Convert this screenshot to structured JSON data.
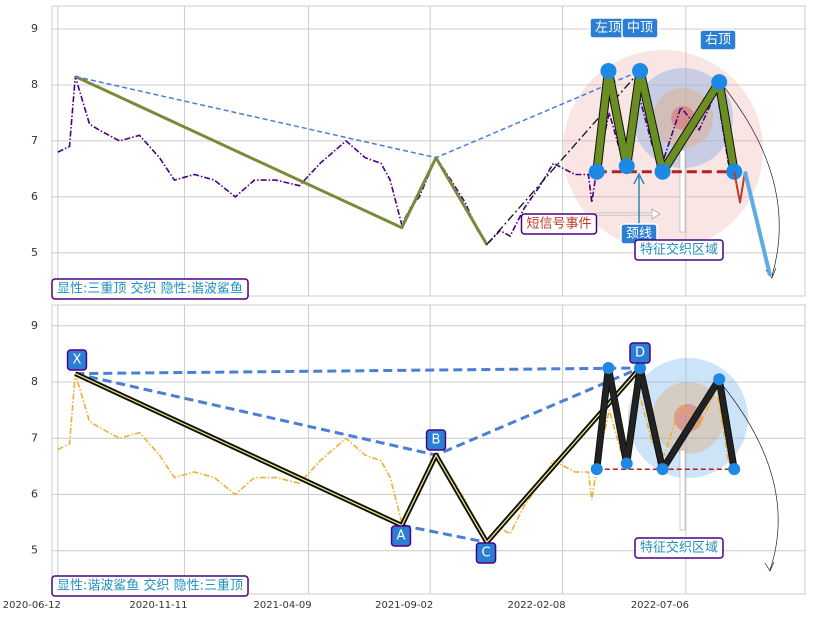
{
  "chart_data": [
    {
      "type": "line",
      "color": "#4b0082",
      "line_style": "dashdot",
      "x": [
        "2020-06-12",
        "2020-06-26",
        "2020-07-03",
        "2020-07-20",
        "2020-07-31",
        "2020-08-25",
        "2020-09-18",
        "2020-10-12",
        "2020-10-30",
        "2020-11-23",
        "2020-12-17",
        "2021-01-11",
        "2021-02-03",
        "2021-03-01",
        "2021-03-29",
        "2021-04-23",
        "2021-05-24",
        "2021-06-16",
        "2021-07-05",
        "2021-07-16",
        "2021-07-30",
        "2021-08-09",
        "2021-08-20",
        "2021-09-09",
        "2021-09-27",
        "2021-10-14",
        "2021-10-29",
        "2021-11-09",
        "2021-11-25",
        "2021-12-07",
        "2021-12-24",
        "2022-01-12",
        "2022-01-28",
        "2022-02-23",
        "2022-03-11",
        "2022-03-15",
        "2022-03-21",
        "2022-04-05",
        "2022-04-22",
        "2022-05-11",
        "2022-05-27",
        "2022-06-10",
        "2022-06-30",
        "2022-07-22",
        "2022-08-12",
        "2022-08-26",
        "2022-09-02"
      ],
      "values": [
        6.8,
        6.9,
        8.15,
        7.3,
        7.2,
        7.0,
        7.1,
        6.7,
        6.3,
        6.4,
        6.3,
        6.0,
        6.3,
        6.3,
        6.2,
        6.6,
        7.0,
        6.7,
        6.6,
        6.3,
        5.5,
        5.8,
        6.0,
        6.7,
        6.3,
        5.9,
        5.4,
        5.15,
        5.4,
        5.3,
        5.8,
        6.2,
        6.6,
        6.4,
        6.4,
        5.9,
        6.5,
        7.5,
        6.6,
        7.8,
        6.9,
        6.7,
        7.6,
        7.2,
        7.9,
        6.6,
        6.4
      ],
      "xlim": [
        "2020-06-05",
        "2022-11-26"
      ],
      "ylim": [
        4.23,
        9.41
      ],
      "yticks": [
        5,
        6,
        7,
        8,
        9
      ],
      "grid": true,
      "lines": [
        {
          "x": [
            "2020-07-03",
            "2021-07-30",
            "2021-09-09",
            "2021-11-09"
          ],
          "values": [
            8.15,
            5.45,
            6.7,
            5.15
          ],
          "color": "#7a8a3a",
          "width": 3
        },
        {
          "x": [
            "2020-07-03",
            "2021-09-09",
            "2022-05-12"
          ],
          "values": [
            8.15,
            6.7,
            8.25
          ],
          "color": "#4a7fd4",
          "width": 1.5,
          "dash": "5,3"
        },
        {
          "x": [
            "2021-11-09",
            "2022-05-12"
          ],
          "values": [
            5.15,
            8.25
          ],
          "color": "#111111",
          "width": 1.3,
          "dash": "8,3,2,3"
        },
        {
          "x": [
            "2022-03-21",
            "2022-09-10"
          ],
          "values": [
            6.45,
            6.45
          ],
          "color": "#b22222",
          "width": 3,
          "dash": "10,5"
        },
        {
          "x": [
            "2022-03-21",
            "2022-04-04",
            "2022-04-26",
            "2022-05-12",
            "2022-06-08",
            "2022-08-15",
            "2022-09-02"
          ],
          "values": [
            6.45,
            8.25,
            6.55,
            8.25,
            6.45,
            8.05,
            6.45
          ],
          "color": "#6b8e23",
          "width": 7,
          "markers": "#1e88e5"
        },
        {
          "x": [
            "2022-09-02",
            "2022-09-09",
            "2022-09-15"
          ],
          "values": [
            6.45,
            5.9,
            6.45
          ],
          "color": "#c0392b",
          "width": 2
        },
        {
          "x": [
            "2022-09-15",
            "2022-10-15"
          ],
          "values": [
            6.45,
            4.6
          ],
          "color": "#5dade2",
          "width": 4
        }
      ],
      "annotations": [
        {
          "text": "左顶"
        },
        {
          "text": "中顶"
        },
        {
          "text": "右顶"
        },
        {
          "text": "颈线"
        },
        {
          "text": "短信号事件"
        },
        {
          "text": "特征交织区域"
        },
        {
          "text": "显性:三重顶 交织 隐性:谐波鲨鱼"
        }
      ]
    },
    {
      "type": "line",
      "color": "#f0b030",
      "line_style": "dashdot",
      "x": [
        "2020-06-12",
        "2020-06-26",
        "2020-07-03",
        "2020-07-20",
        "2020-07-31",
        "2020-08-25",
        "2020-09-18",
        "2020-10-12",
        "2020-10-30",
        "2020-11-23",
        "2020-12-17",
        "2021-01-11",
        "2021-02-03",
        "2021-03-01",
        "2021-03-29",
        "2021-04-23",
        "2021-05-24",
        "2021-06-16",
        "2021-07-05",
        "2021-07-16",
        "2021-07-30",
        "2021-08-09",
        "2021-08-20",
        "2021-09-09",
        "2021-09-27",
        "2021-10-14",
        "2021-10-29",
        "2021-11-09",
        "2021-11-25",
        "2021-12-07",
        "2021-12-24",
        "2022-01-12",
        "2022-01-28",
        "2022-02-23",
        "2022-03-11",
        "2022-03-15",
        "2022-03-21",
        "2022-04-05",
        "2022-04-22",
        "2022-05-11",
        "2022-05-27",
        "2022-06-10",
        "2022-06-30",
        "2022-07-22",
        "2022-08-12",
        "2022-08-26",
        "2022-09-02"
      ],
      "values": [
        6.8,
        6.9,
        8.15,
        7.3,
        7.2,
        7.0,
        7.1,
        6.7,
        6.3,
        6.4,
        6.3,
        6.0,
        6.3,
        6.3,
        6.2,
        6.6,
        7.0,
        6.7,
        6.6,
        6.3,
        5.5,
        5.8,
        6.0,
        6.7,
        6.3,
        5.9,
        5.4,
        5.15,
        5.4,
        5.3,
        5.8,
        6.2,
        6.6,
        6.4,
        6.4,
        5.9,
        6.5,
        7.5,
        6.6,
        7.8,
        6.9,
        6.7,
        7.6,
        7.2,
        7.9,
        6.6,
        6.4
      ],
      "xlim": [
        "2020-06-05",
        "2022-11-26"
      ],
      "ylim": [
        4.23,
        9.37
      ],
      "yticks": [
        5,
        6,
        7,
        8,
        9
      ],
      "grid": true,
      "xticks": [
        "2020-06-12",
        "2020-11-11",
        "2021-04-09",
        "2021-09-02",
        "2022-02-08",
        "2022-07-06"
      ],
      "lines": [
        {
          "x": [
            "2020-07-03",
            "2022-05-12"
          ],
          "values": [
            8.15,
            8.25
          ],
          "color": "#4a7fd4",
          "width": 3,
          "dash": "9,5"
        },
        {
          "x": [
            "2020-07-03",
            "2021-09-09",
            "2022-05-12"
          ],
          "values": [
            8.15,
            6.7,
            8.25
          ],
          "color": "#4a7fd4",
          "width": 3,
          "dash": "9,5"
        },
        {
          "x": [
            "2021-07-30",
            "2021-11-09"
          ],
          "values": [
            5.45,
            5.15
          ],
          "color": "#4a7fd4",
          "width": 3,
          "dash": "9,5"
        },
        {
          "x": [
            "2020-07-03",
            "2021-07-30",
            "2021-09-09",
            "2021-11-09",
            "2022-05-12"
          ],
          "values": [
            8.15,
            5.45,
            6.7,
            5.15,
            8.25
          ],
          "color": "#111111",
          "width": 5,
          "inner": "#f5f07a"
        },
        {
          "x": [
            "2022-03-21",
            "2022-09-02"
          ],
          "values": [
            6.45,
            6.45
          ],
          "color": "#b22222",
          "width": 1.5,
          "dash": "5,3"
        },
        {
          "x": [
            "2022-03-21",
            "2022-04-04",
            "2022-04-26",
            "2022-05-12",
            "2022-06-08",
            "2022-08-15",
            "2022-09-02"
          ],
          "values": [
            6.45,
            8.25,
            6.55,
            8.25,
            6.45,
            8.05,
            6.45
          ],
          "color": "#222222",
          "width": 5,
          "markers": "#1e88e5"
        }
      ],
      "annotations": [
        {
          "text": "X"
        },
        {
          "text": "A"
        },
        {
          "text": "B"
        },
        {
          "text": "C"
        },
        {
          "text": "D"
        },
        {
          "text": "特征交织区域"
        },
        {
          "text": "显性:谐波鲨鱼 交织 隐性:三重顶"
        }
      ]
    }
  ]
}
